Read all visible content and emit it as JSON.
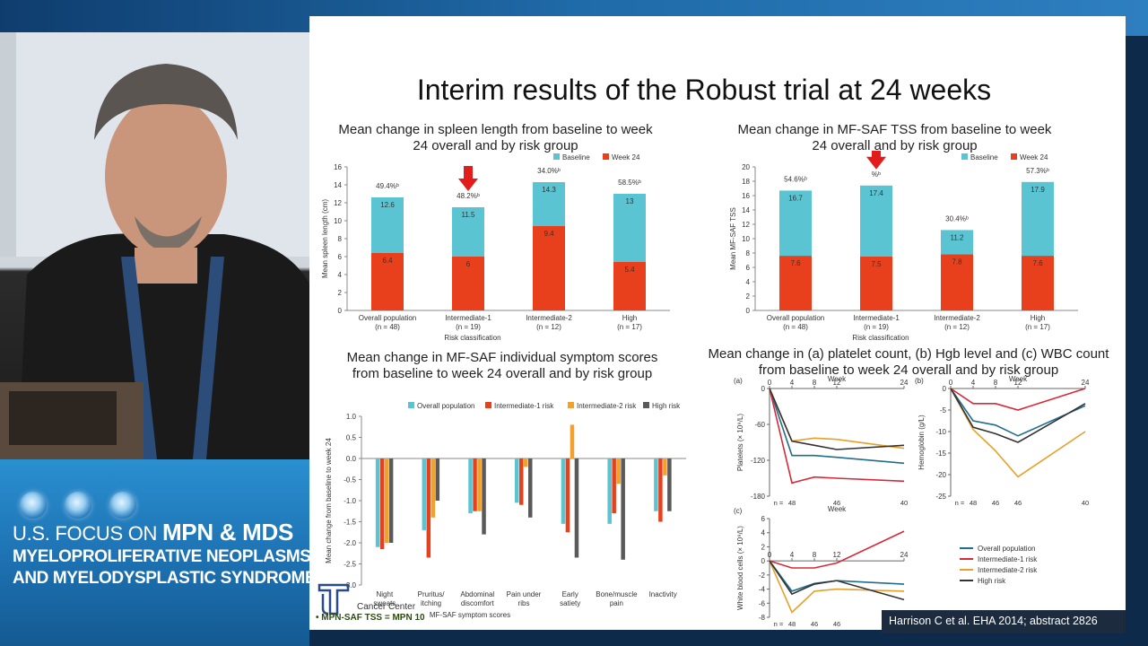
{
  "brand": {
    "line1_prefix": "U.S. FOCUS ON",
    "line1_bold": "MPN & MDS",
    "line2": "MYELOPROLIFERATIVE NEOPLASMS",
    "line3": "AND MYELODYSPLASTIC SYNDROMES"
  },
  "slide": {
    "title": "Interim results of the Robust trial at 24 weeks",
    "citation": "Harrison C et al. EHA 2014; abstract 2826",
    "footnote": "MPN-SAF TSS = MPN 10",
    "footer_logo_text": "Cancer Center"
  },
  "chart_data": [
    {
      "type": "bar",
      "title": "Mean change in spleen length from baseline to week 24 overall and by risk group",
      "categories": [
        "Overall population",
        "Intermediate-1",
        "Intermediate-2",
        "High"
      ],
      "category_counts": [
        "(n = 48)",
        "(n = 19)",
        "(n = 12)",
        "(n = 17)"
      ],
      "series": [
        {
          "name": "Baseline",
          "values": [
            12.6,
            11.5,
            14.3,
            13.0
          ],
          "color": "#5bc4d2"
        },
        {
          "name": "Week 24",
          "values": [
            6.4,
            6.0,
            9.4,
            5.4
          ],
          "color": "#e8401c"
        }
      ],
      "percent_labels": [
        "49.4%ᵇ",
        "48.2%ᵇ",
        "34.0%ᵇ",
        "58.5%ᵇ"
      ],
      "xlabel": "Risk classification",
      "ylabel": "Mean spleen length (cm)",
      "ylim": [
        0,
        16
      ],
      "yticks": [
        0,
        2,
        4,
        6,
        8,
        10,
        12,
        14,
        16
      ],
      "arrow_category": 1,
      "legend": "top-right"
    },
    {
      "type": "bar",
      "title": "Mean change in MF-SAF TSS from baseline to week 24 overall and by risk group",
      "categories": [
        "Overall population",
        "Intermediate-1",
        "Intermediate-2",
        "High"
      ],
      "category_counts": [
        "(n = 48)",
        "(n = 19)",
        "(n = 12)",
        "(n = 17)"
      ],
      "series": [
        {
          "name": "Baseline",
          "values": [
            16.7,
            17.4,
            11.2,
            17.9
          ],
          "color": "#5bc4d2"
        },
        {
          "name": "Week 24",
          "values": [
            7.6,
            7.5,
            7.8,
            7.6
          ],
          "color": "#e8401c"
        }
      ],
      "percent_labels": [
        "54.6%ᵇ",
        "%ᵇ",
        "30.4%ᵇ",
        "57.3%ᵇ"
      ],
      "xlabel": "Risk classification",
      "ylabel": "Mean MF-SAF TSS",
      "ylim": [
        0,
        20
      ],
      "yticks": [
        0,
        2,
        4,
        6,
        8,
        10,
        12,
        14,
        16,
        18,
        20
      ],
      "arrow_category": 1,
      "legend": "top-right"
    },
    {
      "type": "bar",
      "title": "Mean change in MF-SAF individual symptom scores from baseline to week 24 overall and by risk group",
      "categories": [
        "Night sweats",
        "Pruritus/ itching",
        "Abdominal discomfort",
        "Pain under ribs",
        "Early satiety",
        "Bone/muscle pain",
        "Inactivity"
      ],
      "series": [
        {
          "name": "Overall population",
          "values": [
            -2.1,
            -1.7,
            -1.3,
            -1.05,
            -1.55,
            -1.55,
            -1.25
          ],
          "color": "#5bc4d2"
        },
        {
          "name": "Intermediate-1 risk",
          "values": [
            -2.15,
            -2.35,
            -1.25,
            -1.1,
            -1.75,
            -1.3,
            -1.5
          ],
          "color": "#e8401c"
        },
        {
          "name": "Intermediate-2 risk",
          "values": [
            -2.0,
            -1.4,
            -1.25,
            -0.2,
            0.8,
            -0.6,
            -0.4
          ],
          "color": "#f2a12a"
        },
        {
          "name": "High risk",
          "values": [
            -2.0,
            -1.0,
            -1.8,
            -1.4,
            -2.35,
            -2.4,
            -1.25
          ],
          "color": "#5a5a5a"
        }
      ],
      "xlabel": "MF-SAF symptom scores",
      "ylabel": "Mean change from baseline to week 24",
      "ylim": [
        -3.0,
        1.0
      ],
      "yticks": [
        1.0,
        0.5,
        0,
        -0.5,
        -1.0,
        -1.5,
        -2.0,
        -2.5,
        -3.0
      ],
      "legend": "top"
    },
    {
      "type": "line",
      "title": "Mean change in (a) platelet count, (b) Hgb level and (c) WBC count from baseline to week 24 overall and by risk group",
      "panels": [
        {
          "label": "(a)",
          "ylabel": "Platelets (× 10⁹/L)",
          "x": [
            0,
            4,
            8,
            12,
            24
          ],
          "xlabel": "Week",
          "ylim": [
            -180,
            0
          ],
          "yticks": [
            0,
            -60,
            -120,
            -180
          ],
          "n_label": "n =",
          "n_values": [
            "48",
            "46",
            "40"
          ],
          "n_weeks": [
            4,
            12,
            24
          ],
          "series": [
            {
              "name": "Overall population",
              "values": [
                0,
                -112,
                -112,
                -115,
                -125
              ],
              "color": "#1f6e8c"
            },
            {
              "name": "Intermediate-1 risk",
              "values": [
                0,
                -158,
                -148,
                -150,
                -155
              ],
              "color": "#d6293a"
            },
            {
              "name": "Intermediate-2 risk",
              "values": [
                0,
                -88,
                -83,
                -85,
                -100
              ],
              "color": "#e6a12a"
            },
            {
              "name": "High risk",
              "values": [
                0,
                -88,
                -95,
                -102,
                -95
              ],
              "color": "#333333"
            }
          ]
        },
        {
          "label": "(b)",
          "ylabel": "Hemoglobin (g/L)",
          "x": [
            0,
            4,
            8,
            12,
            24
          ],
          "xlabel": "Week",
          "ylim": [
            -25,
            0
          ],
          "yticks": [
            0,
            -5,
            -10,
            -15,
            -20,
            -25
          ],
          "n_label": "n =",
          "n_values": [
            "48",
            "46",
            "46",
            "40"
          ],
          "n_weeks": [
            4,
            8,
            12,
            24
          ],
          "series": [
            {
              "name": "Overall population",
              "values": [
                0,
                -7.5,
                -8.5,
                -11,
                -4
              ],
              "color": "#1f6e8c"
            },
            {
              "name": "Intermediate-1 risk",
              "values": [
                0,
                -3.5,
                -3.5,
                -5,
                0
              ],
              "color": "#d6293a"
            },
            {
              "name": "Intermediate-2 risk",
              "values": [
                0,
                -9.5,
                -14.5,
                -20.5,
                -10
              ],
              "color": "#e6a12a"
            },
            {
              "name": "High risk",
              "values": [
                0,
                -9,
                -10.5,
                -12.5,
                -3.5
              ],
              "color": "#333333"
            }
          ]
        },
        {
          "label": "(c)",
          "ylabel": "White blood cells (× 10⁹/L)",
          "x": [
            0,
            4,
            8,
            12,
            24
          ],
          "xlabel": "Week",
          "ylim": [
            -8,
            6
          ],
          "yticks": [
            6,
            4,
            2,
            0,
            -2,
            -4,
            -6,
            -8
          ],
          "n_label": "n =",
          "n_values": [
            "48",
            "46",
            "46",
            "40"
          ],
          "n_weeks": [
            4,
            8,
            12,
            24
          ],
          "series": [
            {
              "name": "Overall population",
              "values": [
                0,
                -4.3,
                -3.2,
                -2.8,
                -3.3
              ],
              "color": "#1f6e8c"
            },
            {
              "name": "Intermediate-1 risk",
              "values": [
                0,
                -1.0,
                -1.0,
                -0.3,
                4.2
              ],
              "color": "#d6293a"
            },
            {
              "name": "Intermediate-2 risk",
              "values": [
                0,
                -7.3,
                -4.3,
                -4.0,
                -4.3
              ],
              "color": "#e6a12a"
            },
            {
              "name": "High risk",
              "values": [
                0,
                -4.7,
                -3.3,
                -2.8,
                -5.5
              ],
              "color": "#333333"
            }
          ]
        }
      ],
      "legend": "bottom-right"
    }
  ]
}
